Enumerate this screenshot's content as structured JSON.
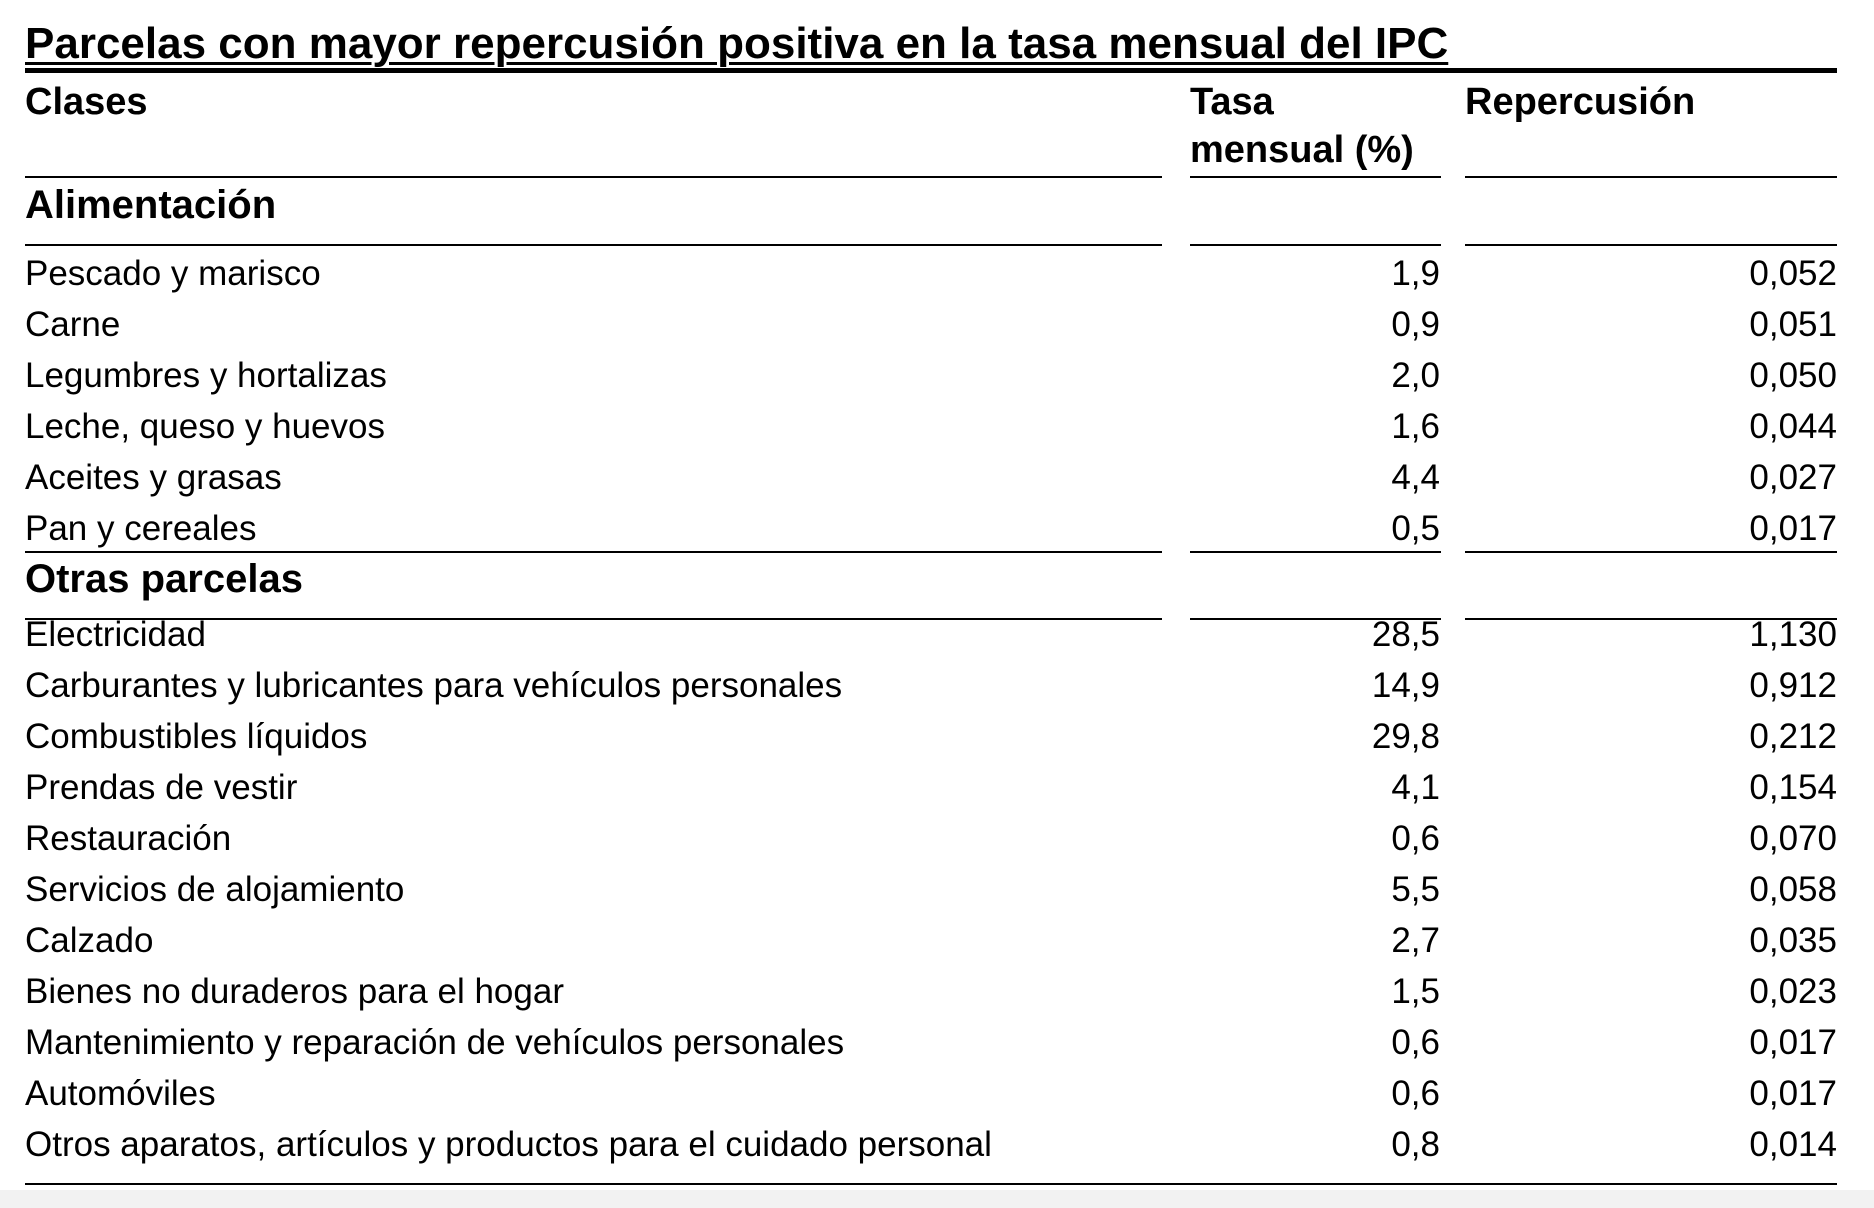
{
  "title": "Parcelas con mayor repercusión positiva en la tasa mensual del IPC",
  "columns": {
    "clases": "Clases",
    "tasa_line1": "Tasa",
    "tasa_line2": "mensual (%)",
    "repercusion": "Repercusión"
  },
  "sections": [
    {
      "name": "Alimentación",
      "rows": [
        {
          "clase": "Pescado y marisco",
          "tasa": "1,9",
          "repercusion": "0,052"
        },
        {
          "clase": "Carne",
          "tasa": "0,9",
          "repercusion": "0,051"
        },
        {
          "clase": "Legumbres y hortalizas",
          "tasa": "2,0",
          "repercusion": "0,050"
        },
        {
          "clase": "Leche, queso y huevos",
          "tasa": "1,6",
          "repercusion": "0,044"
        },
        {
          "clase": "Aceites y grasas",
          "tasa": "4,4",
          "repercusion": "0,027"
        },
        {
          "clase": "Pan y cereales",
          "tasa": "0,5",
          "repercusion": "0,017"
        }
      ]
    },
    {
      "name": "Otras parcelas",
      "rows": [
        {
          "clase": "Electricidad",
          "tasa": "28,5",
          "repercusion": "1,130"
        },
        {
          "clase": "Carburantes y lubricantes para vehículos personales",
          "tasa": "14,9",
          "repercusion": "0,912"
        },
        {
          "clase": "Combustibles líquidos",
          "tasa": "29,8",
          "repercusion": "0,212"
        },
        {
          "clase": "Prendas de vestir",
          "tasa": "4,1",
          "repercusion": "0,154"
        },
        {
          "clase": "Restauración",
          "tasa": "0,6",
          "repercusion": "0,070"
        },
        {
          "clase": "Servicios de alojamiento",
          "tasa": "5,5",
          "repercusion": "0,058"
        },
        {
          "clase": "Calzado",
          "tasa": "2,7",
          "repercusion": "0,035"
        },
        {
          "clase": "Bienes no duraderos para el hogar",
          "tasa": "1,5",
          "repercusion": "0,023"
        },
        {
          "clase": "Mantenimiento y reparación de vehículos personales",
          "tasa": "0,6",
          "repercusion": "0,017"
        },
        {
          "clase": "Automóviles",
          "tasa": "0,6",
          "repercusion": "0,017"
        },
        {
          "clase": "Otros aparatos, artículos y productos para el cuidado personal",
          "tasa": "0,8",
          "repercusion": "0,014"
        }
      ]
    }
  ]
}
